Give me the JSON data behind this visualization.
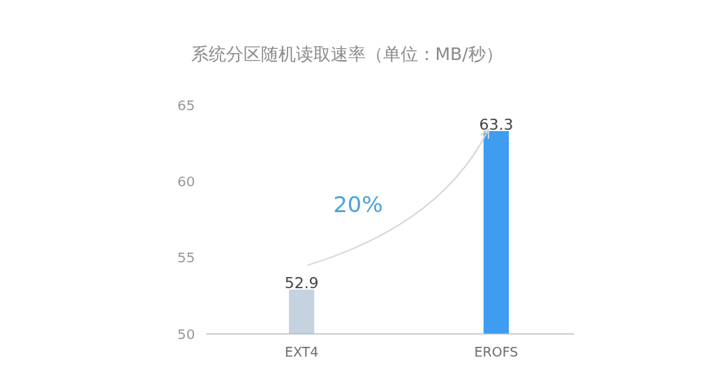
{
  "chart_data": {
    "type": "bar",
    "title": "系统分区随机读取速率（单位：MB/秒）",
    "categories": [
      "EXT4",
      "EROFS"
    ],
    "values": [
      52.9,
      63.3
    ],
    "colors": [
      "#c4d3df",
      "#3e9cf1"
    ],
    "ylim": [
      50,
      65
    ],
    "yticks": [
      50,
      55,
      60,
      65
    ],
    "data_labels": true,
    "annotations": [
      "20%"
    ]
  }
}
